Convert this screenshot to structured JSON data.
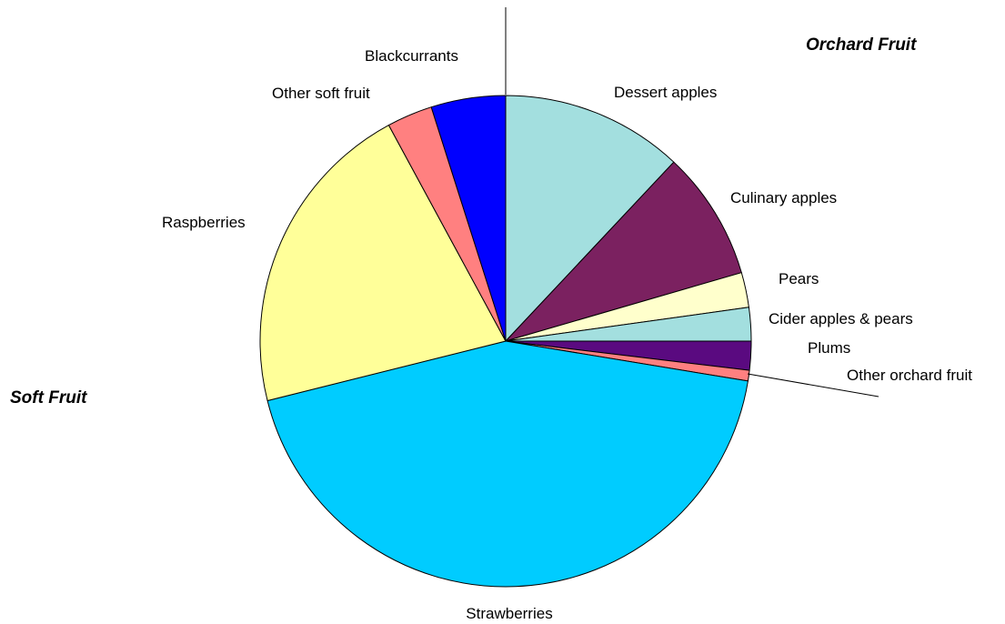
{
  "chart_data": {
    "type": "pie",
    "slices": [
      {
        "label": "Dessert apples",
        "value": 12.0,
        "color": "#a3dfdf",
        "group": "orchard"
      },
      {
        "label": "Culinary apples",
        "value": 8.5,
        "color": "#7b2160",
        "group": "orchard"
      },
      {
        "label": "Pears",
        "value": 2.3,
        "color": "#ffffcc",
        "group": "orchard"
      },
      {
        "label": "Cider apples & pears",
        "value": 2.2,
        "color": "#a3dfdf",
        "group": "orchard"
      },
      {
        "label": "Plums",
        "value": 1.9,
        "color": "#5a0a80",
        "group": "orchard"
      },
      {
        "label": "Other orchard fruit",
        "value": 0.7,
        "color": "#ff8080",
        "group": "orchard"
      },
      {
        "label": "Strawberries",
        "value": 43.5,
        "color": "#00ccff",
        "group": "soft"
      },
      {
        "label": "Raspberries",
        "value": 21.0,
        "color": "#ffff99",
        "group": "soft"
      },
      {
        "label": "Other soft fruit",
        "value": 3.0,
        "color": "#ff8080",
        "group": "soft"
      },
      {
        "label": "Blackcurrants",
        "value": 4.9,
        "color": "#0000ff",
        "group": "soft"
      }
    ],
    "groups": {
      "orchard": "Orchard Fruit",
      "soft": "Soft Fruit"
    },
    "start": "top",
    "direction": "clockwise",
    "slice_border_color": "#000000"
  }
}
